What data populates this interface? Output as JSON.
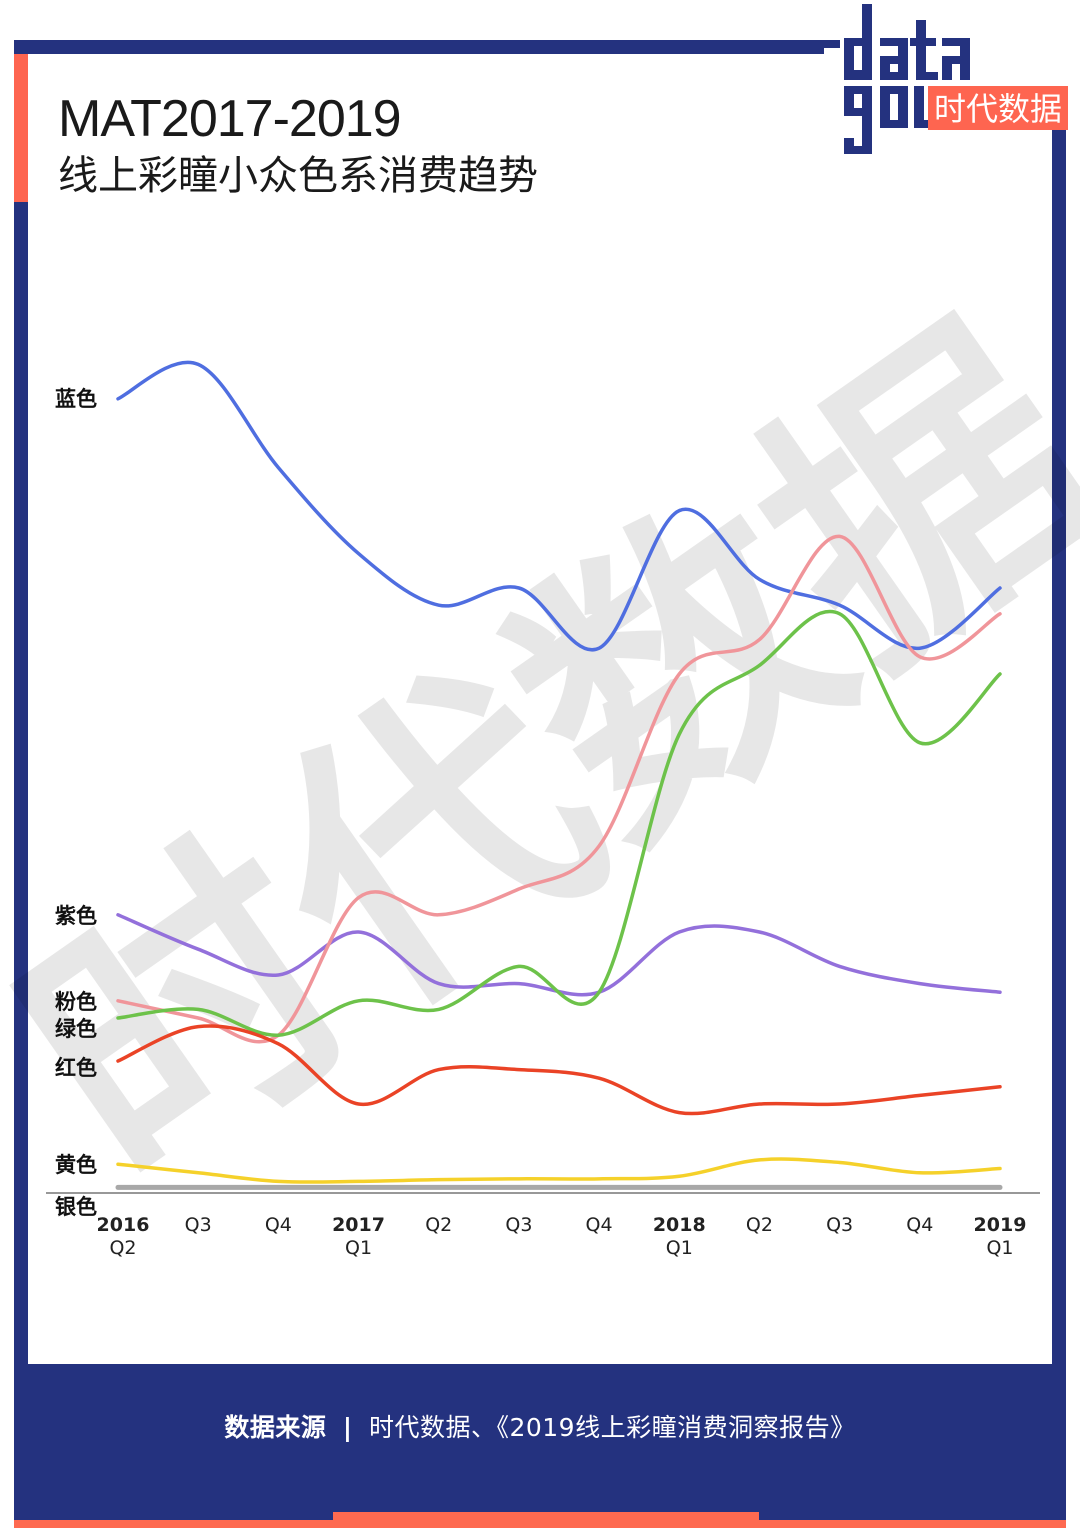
{
  "header": {
    "title_line1": "MAT2017-2019",
    "title_line2": "线上彩瞳小众色系消费趋势"
  },
  "logo": {
    "wordmark": "data good",
    "brand_cn": "时代数据",
    "colors": {
      "primary": "#24327f",
      "accent": "#fe6550"
    }
  },
  "footer": {
    "source_label": "数据来源",
    "separator": "|",
    "source_text": "时代数据、《2019线上彩瞳消费洞察报告》"
  },
  "watermark": "时代数据",
  "chart_data": {
    "type": "line",
    "title": "MAT2017-2019 线上彩瞳小众色系消费趋势",
    "xlabel": "",
    "ylabel": "",
    "y_axis": "no numeric ticks shown; values are relative index (0-100) estimated from pixel positions",
    "ylim": [
      0,
      100
    ],
    "grid": false,
    "legend_position": "inline-left (labels at series start)",
    "categories": [
      "2016 Q2",
      "Q3",
      "Q4",
      "2017 Q1",
      "Q2",
      "Q3",
      "Q4",
      "2018 Q1",
      "Q2",
      "Q3",
      "Q4",
      "2019 Q1"
    ],
    "x_ticks": [
      {
        "top": "2016",
        "bottom": "Q2",
        "bold_top": true
      },
      {
        "top": "Q3",
        "bottom": ""
      },
      {
        "top": "Q4",
        "bottom": ""
      },
      {
        "top": "2017",
        "bottom": "Q1",
        "bold_top": true
      },
      {
        "top": "Q2",
        "bottom": ""
      },
      {
        "top": "Q3",
        "bottom": ""
      },
      {
        "top": "Q4",
        "bottom": ""
      },
      {
        "top": "2018",
        "bottom": "Q1",
        "bold_top": true
      },
      {
        "top": "Q2",
        "bottom": ""
      },
      {
        "top": "Q3",
        "bottom": ""
      },
      {
        "top": "Q4",
        "bottom": ""
      },
      {
        "top": "2019",
        "bottom": "Q1",
        "bold_top": true
      }
    ],
    "series": [
      {
        "name": "蓝色",
        "color": "#4f6ee0",
        "values": [
          92,
          96,
          84,
          74,
          68,
          70,
          63,
          79,
          71,
          68,
          63,
          70
        ]
      },
      {
        "name": "紫色",
        "color": "#9370db",
        "values": [
          32,
          28,
          25,
          30,
          24,
          24,
          23,
          30,
          30,
          26,
          24,
          23
        ]
      },
      {
        "name": "粉色",
        "color": "#f0959a",
        "values": [
          22,
          20,
          18,
          34,
          32,
          35,
          40,
          60,
          64,
          76,
          62,
          67
        ]
      },
      {
        "name": "绿色",
        "color": "#6dc24a",
        "values": [
          20,
          21,
          18,
          22,
          21,
          26,
          23,
          53,
          61,
          67,
          52,
          60
        ]
      },
      {
        "name": "红色",
        "color": "#ea4326",
        "values": [
          15,
          19,
          17,
          10,
          14,
          14,
          13,
          9,
          10,
          10,
          11,
          12
        ]
      },
      {
        "name": "黄色",
        "color": "#f5d12a",
        "values": [
          3,
          2,
          1,
          1,
          1.2,
          1.3,
          1.3,
          1.6,
          3.5,
          3.2,
          2,
          2.5
        ]
      },
      {
        "name": "银色",
        "color": "#a8a8a8",
        "values": [
          0.3,
          0.3,
          0.3,
          0.3,
          0.3,
          0.3,
          0.3,
          0.3,
          0.3,
          0.3,
          0.3,
          0.3
        ]
      }
    ]
  }
}
